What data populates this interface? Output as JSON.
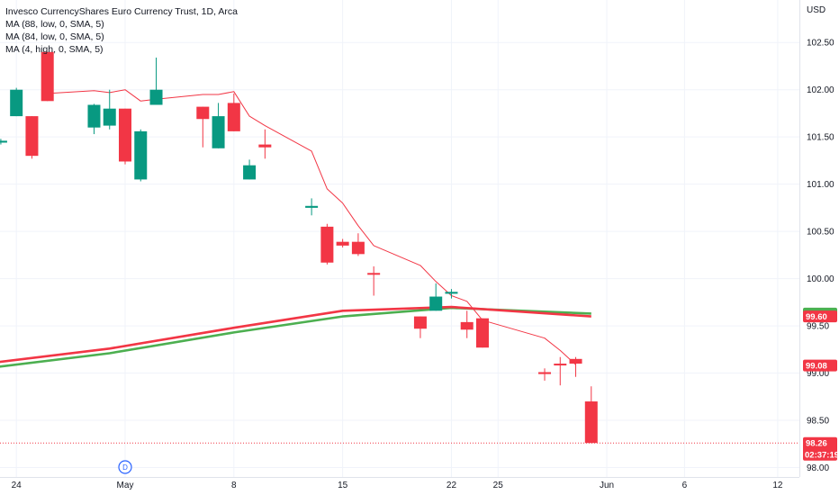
{
  "header": {
    "title": "Invesco CurrencyShares Euro Currency Trust, 1D, Arca",
    "indicators": [
      "MA (88, low, 0, SMA, 5)",
      "MA (84, low, 0, SMA, 5)",
      "MA (4, high, 0, SMA, 5)"
    ]
  },
  "chart_data": {
    "type": "candlestick",
    "currency": "USD",
    "y_ticks": [
      "102.50",
      "102.00",
      "101.50",
      "101.00",
      "100.50",
      "100.00",
      "99.50",
      "99.00",
      "98.50",
      "98.00"
    ],
    "ylim": [
      97.9,
      102.95
    ],
    "x_ticks": [
      {
        "label": "24",
        "date": "2024-04-24"
      },
      {
        "label": "May",
        "date": "2024-05-01"
      },
      {
        "label": "8",
        "date": "2024-05-08"
      },
      {
        "label": "15",
        "date": "2024-05-15"
      },
      {
        "label": "22",
        "date": "2024-05-22"
      },
      {
        "label": "25",
        "date": "2024-05-25"
      },
      {
        "label": "Jun",
        "date": "2024-06-01"
      },
      {
        "label": "6",
        "date": "2024-06-06"
      },
      {
        "label": "12",
        "date": "2024-06-12"
      }
    ],
    "candles": [
      {
        "date": "2024-04-23",
        "open": 101.44,
        "high": 101.48,
        "low": 101.42,
        "close": 101.46
      },
      {
        "date": "2024-04-24",
        "open": 101.72,
        "high": 102.02,
        "low": 101.72,
        "close": 102.0
      },
      {
        "date": "2024-04-25",
        "open": 101.72,
        "high": 101.72,
        "low": 101.27,
        "close": 101.3
      },
      {
        "date": "2024-04-26",
        "open": 102.4,
        "high": 102.4,
        "low": 101.88,
        "close": 101.88
      },
      {
        "date": "2024-04-29",
        "open": 101.6,
        "high": 101.85,
        "low": 101.53,
        "close": 101.84
      },
      {
        "date": "2024-04-30",
        "open": 101.62,
        "high": 102.0,
        "low": 101.58,
        "close": 101.8
      },
      {
        "date": "2024-05-01",
        "open": 101.8,
        "high": 101.8,
        "low": 101.21,
        "close": 101.24
      },
      {
        "date": "2024-05-02",
        "open": 101.05,
        "high": 101.58,
        "low": 101.03,
        "close": 101.56
      },
      {
        "date": "2024-05-03",
        "open": 101.84,
        "high": 102.34,
        "low": 101.84,
        "close": 102.0
      },
      {
        "date": "2024-05-06",
        "open": 101.82,
        "high": 101.82,
        "low": 101.39,
        "close": 101.69
      },
      {
        "date": "2024-05-07",
        "open": 101.38,
        "high": 101.86,
        "low": 101.38,
        "close": 101.72
      },
      {
        "date": "2024-05-08",
        "open": 101.86,
        "high": 101.96,
        "low": 101.56,
        "close": 101.56
      },
      {
        "date": "2024-05-09",
        "open": 101.05,
        "high": 101.26,
        "low": 101.05,
        "close": 101.2
      },
      {
        "date": "2024-05-10",
        "open": 101.42,
        "high": 101.58,
        "low": 101.27,
        "close": 101.39
      },
      {
        "date": "2024-05-13",
        "open": 100.75,
        "high": 100.85,
        "low": 100.67,
        "close": 100.77
      },
      {
        "date": "2024-05-14",
        "open": 100.55,
        "high": 100.58,
        "low": 100.15,
        "close": 100.17
      },
      {
        "date": "2024-05-15",
        "open": 100.39,
        "high": 100.42,
        "low": 100.33,
        "close": 100.35
      },
      {
        "date": "2024-05-16",
        "open": 100.39,
        "high": 100.48,
        "low": 100.24,
        "close": 100.26
      },
      {
        "date": "2024-05-17",
        "open": 100.06,
        "high": 100.13,
        "low": 99.82,
        "close": 100.05
      },
      {
        "date": "2024-05-20",
        "open": 99.6,
        "high": 99.6,
        "low": 99.37,
        "close": 99.47
      },
      {
        "date": "2024-05-21",
        "open": 99.66,
        "high": 99.95,
        "low": 99.66,
        "close": 99.81
      },
      {
        "date": "2024-05-22",
        "open": 99.84,
        "high": 99.89,
        "low": 99.79,
        "close": 99.86
      },
      {
        "date": "2024-05-23",
        "open": 99.54,
        "high": 99.66,
        "low": 99.37,
        "close": 99.46
      },
      {
        "date": "2024-05-24",
        "open": 99.58,
        "high": 99.58,
        "low": 99.27,
        "close": 99.27
      },
      {
        "date": "2024-05-28",
        "open": 99.01,
        "high": 99.05,
        "low": 98.92,
        "close": 98.99
      },
      {
        "date": "2024-05-29",
        "open": 99.1,
        "high": 99.17,
        "low": 98.87,
        "close": 99.09
      },
      {
        "date": "2024-05-30",
        "open": 99.15,
        "high": 99.17,
        "low": 98.96,
        "close": 99.1
      },
      {
        "date": "2024-05-31",
        "open": 98.7,
        "high": 98.86,
        "low": 98.26,
        "close": 98.26
      }
    ],
    "series": [
      {
        "name": "MA (88, low, 0, SMA, 5)",
        "color": "#4caf50",
        "points": [
          [
            "2024-04-19",
            98.99
          ],
          [
            "2024-04-30",
            99.21
          ],
          [
            "2024-05-08",
            99.43
          ],
          [
            "2024-05-15",
            99.6
          ],
          [
            "2024-05-22",
            99.69
          ],
          [
            "2024-05-31",
            99.63
          ]
        ]
      },
      {
        "name": "MA (84, low, 0, SMA, 5)",
        "color": "#f23645",
        "points": [
          [
            "2024-04-19",
            99.04
          ],
          [
            "2024-04-30",
            99.26
          ],
          [
            "2024-05-08",
            99.48
          ],
          [
            "2024-05-15",
            99.66
          ],
          [
            "2024-05-22",
            99.7
          ],
          [
            "2024-05-31",
            99.6
          ]
        ]
      },
      {
        "name": "MA (4, high, 0, SMA, 5)",
        "color": "#f23645",
        "points": [
          [
            "2024-04-26",
            101.96
          ],
          [
            "2024-04-29",
            101.99
          ],
          [
            "2024-04-30",
            101.97
          ],
          [
            "2024-05-01",
            102.0
          ],
          [
            "2024-05-02",
            101.88
          ],
          [
            "2024-05-03",
            101.9
          ],
          [
            "2024-05-06",
            101.95
          ],
          [
            "2024-05-07",
            101.95
          ],
          [
            "2024-05-08",
            101.98
          ],
          [
            "2024-05-09",
            101.72
          ],
          [
            "2024-05-10",
            101.62
          ],
          [
            "2024-05-13",
            101.35
          ],
          [
            "2024-05-14",
            100.95
          ],
          [
            "2024-05-15",
            100.8
          ],
          [
            "2024-05-16",
            100.56
          ],
          [
            "2024-05-17",
            100.35
          ],
          [
            "2024-05-20",
            100.14
          ],
          [
            "2024-05-21",
            99.97
          ],
          [
            "2024-05-22",
            99.82
          ],
          [
            "2024-05-23",
            99.76
          ],
          [
            "2024-05-24",
            99.56
          ],
          [
            "2024-05-28",
            99.37
          ],
          [
            "2024-05-29",
            99.24
          ],
          [
            "2024-05-30",
            99.09
          ]
        ]
      }
    ],
    "price_badges": [
      {
        "value": 99.63,
        "text": "99.63",
        "color": "#4caf50"
      },
      {
        "value": 99.6,
        "text": "99.60",
        "color": "#f23645"
      },
      {
        "value": 99.08,
        "text": "99.08",
        "color": "#f23645"
      },
      {
        "value": 98.26,
        "text": "98.26",
        "sub": "02:37:19",
        "color": "#f23645"
      }
    ],
    "last_price": 98.26,
    "events": [
      {
        "date": "2024-05-01",
        "label": "D"
      }
    ],
    "colors": {
      "up": "#089981",
      "down": "#f23645",
      "grid": "#f0f3fa",
      "axis_text": "#131722"
    },
    "grid": true
  }
}
